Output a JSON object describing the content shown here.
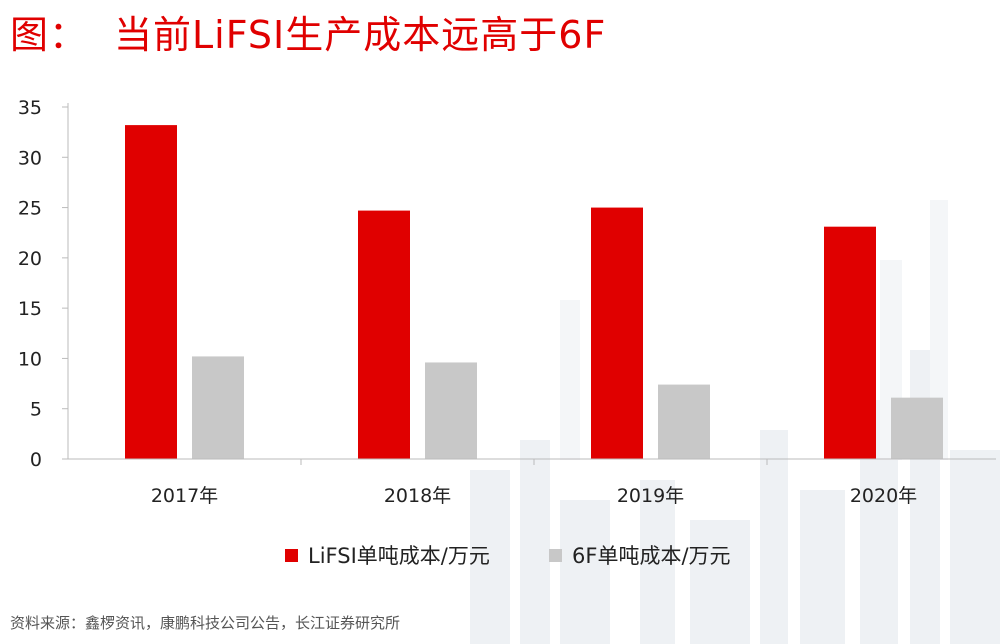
{
  "header": {
    "label": "图：",
    "title": "当前LiFSI生产成本远高于6F"
  },
  "colors": {
    "lifsi": "#e00000",
    "f6": "#c8c8c8",
    "title": "#e00000"
  },
  "chart_data": {
    "type": "bar",
    "categories": [
      "2017年",
      "2018年",
      "2019年",
      "2020年"
    ],
    "series": [
      {
        "name": "LiFSI单吨成本/万元",
        "values": [
          33.2,
          24.7,
          25.0,
          23.1
        ]
      },
      {
        "name": "6F单吨成本/万元",
        "values": [
          10.2,
          9.6,
          7.4,
          6.1
        ]
      }
    ],
    "ylim": [
      0,
      35
    ],
    "yticks": [
      0,
      5,
      10,
      15,
      20,
      25,
      30,
      35
    ],
    "grid": false,
    "legend_position": "bottom"
  },
  "footer": {
    "source": "资料来源：鑫椤资讯，康鹏科技公司公告，长江证券研究所"
  }
}
